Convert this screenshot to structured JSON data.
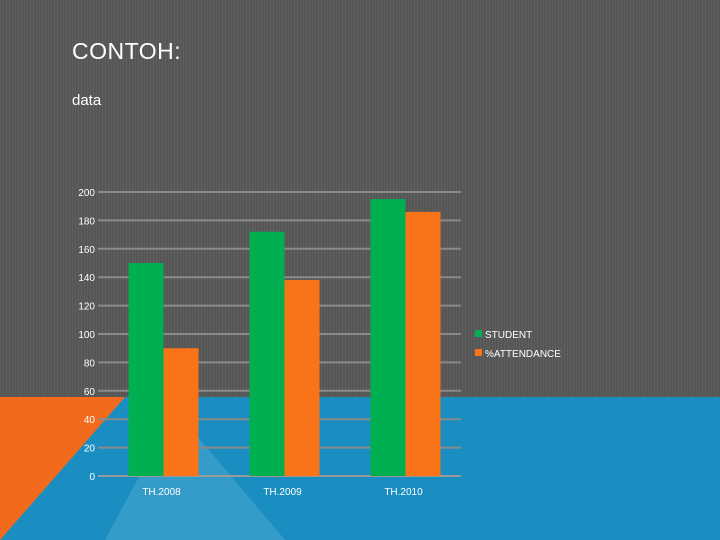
{
  "slide": {
    "title": "CONTOH:",
    "subtitle": "data",
    "colors": {
      "background": "#5a5a5a",
      "blue_band": "#1b8ec1",
      "orange_accent": "#f26b1d",
      "text": "#ffffff"
    }
  },
  "chart_data": {
    "type": "bar",
    "categories": [
      "TH.2008",
      "TH.2009",
      "TH.2010"
    ],
    "series": [
      {
        "name": "STUDENT",
        "color": "#00b050",
        "values": [
          150,
          172,
          195
        ]
      },
      {
        "name": "%ATTENDANCE",
        "color": "#f97319",
        "values": [
          90,
          138,
          186
        ]
      }
    ],
    "ylim": [
      0,
      200
    ],
    "yticks": [
      0,
      20,
      40,
      60,
      80,
      100,
      120,
      140,
      160,
      180,
      200
    ],
    "title": "",
    "xlabel": "",
    "ylabel": "",
    "grid": true,
    "legend_position": "right"
  }
}
